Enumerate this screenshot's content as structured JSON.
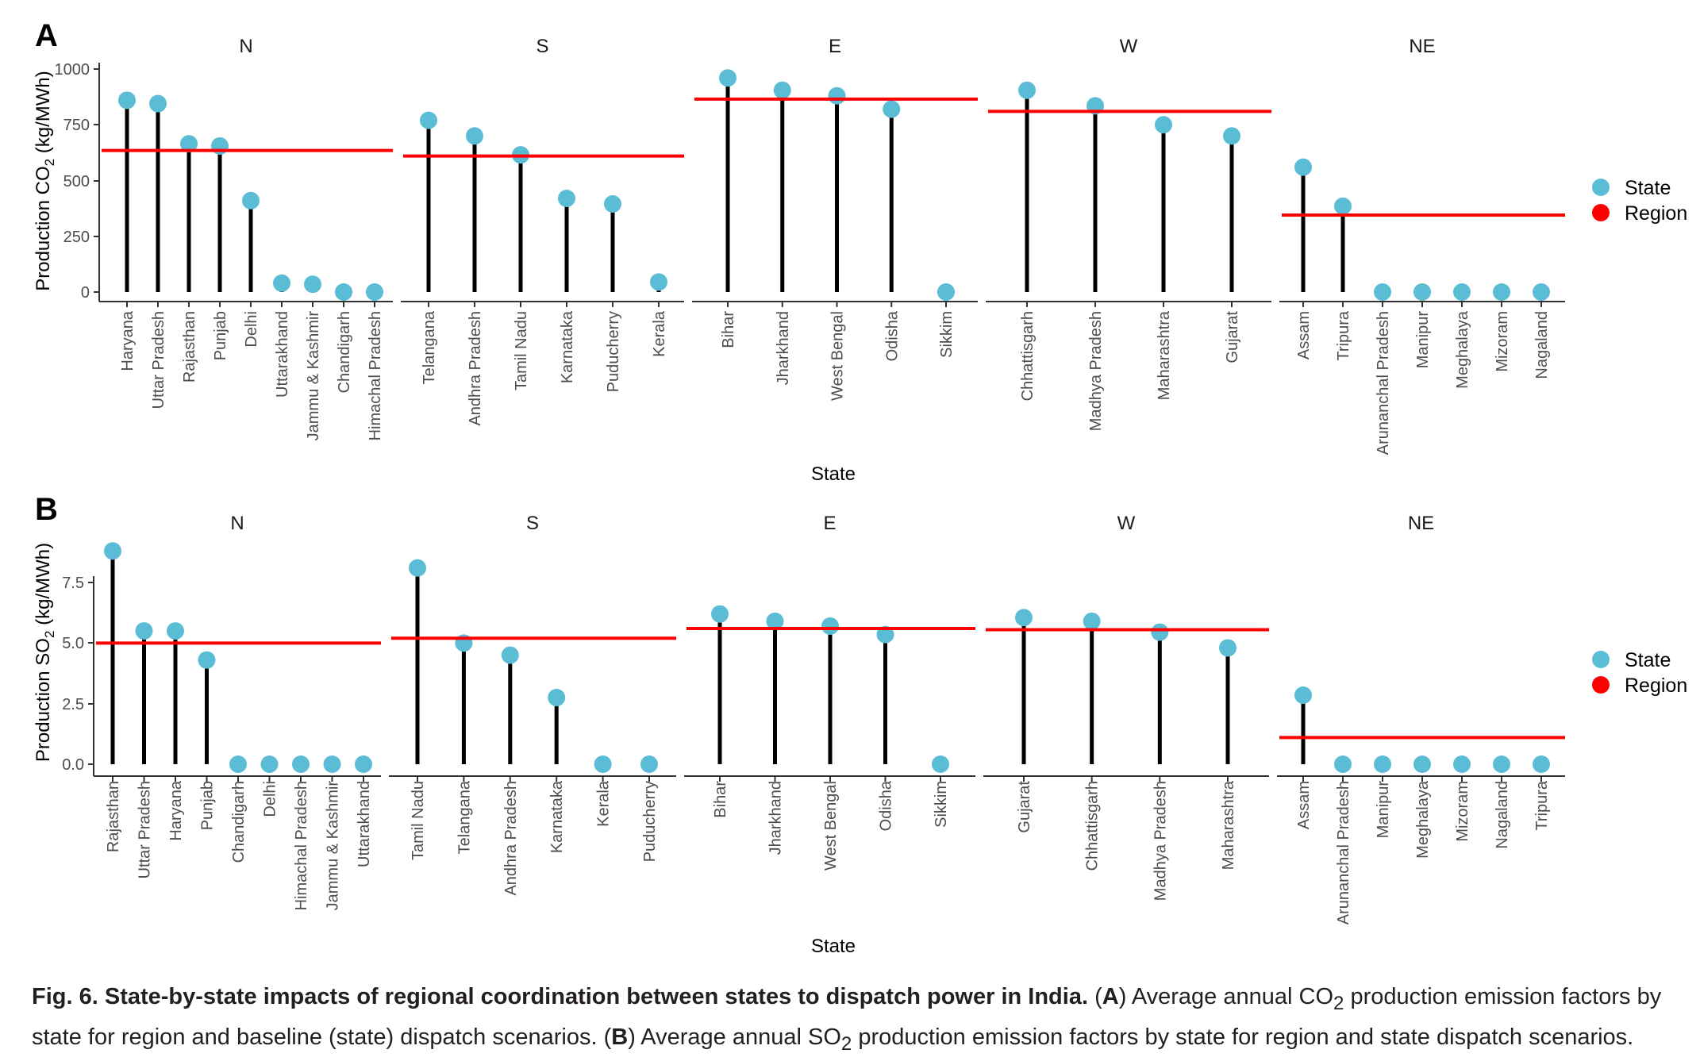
{
  "colors": {
    "state": "#5bbcd6",
    "region": "#ff0000",
    "stem": "#000000",
    "axis": "#333333"
  },
  "legend": {
    "state_label": "State",
    "region_label": "Region"
  },
  "caption": {
    "fig_label": "Fig. 6.",
    "title": "State-by-state impacts of regional coordination between states to dispatch power in India.",
    "a_open": "(",
    "a_letter": "A",
    "a_text_1": ") Average annual CO",
    "a_sub": "2",
    "a_text_2": " production emission factors by state for region and baseline (state) dispatch scenarios. (",
    "b_letter": "B",
    "b_text_1": ") Average annual SO",
    "b_sub": "2",
    "b_text_2": " production emission factors by state for region and state dispatch scenarios."
  },
  "chart_data": [
    {
      "type": "lollipop",
      "panel": "A",
      "ylabel_main": "Production CO",
      "ylabel_sub": "2",
      "ylabel_tail": " (kg/MWh)",
      "xlabel": "State",
      "ylim": [
        0,
        1000
      ],
      "yticks": [
        0,
        250,
        500,
        750,
        1000
      ],
      "ytick_labels": [
        "0",
        "250",
        "500",
        "750",
        "1000"
      ],
      "facets": [
        {
          "name": "N",
          "region": 635,
          "states": [
            [
              "Haryana",
              860
            ],
            [
              "Uttar Pradesh",
              845
            ],
            [
              "Rajasthan",
              665
            ],
            [
              "Punjab",
              655
            ],
            [
              "Delhi",
              410
            ],
            [
              "Uttarakhand",
              40
            ],
            [
              "Jammu & Kashmir",
              35
            ],
            [
              "Chandigarh",
              0
            ],
            [
              "Himachal Pradesh",
              0
            ]
          ]
        },
        {
          "name": "S",
          "region": 610,
          "states": [
            [
              "Telangana",
              770
            ],
            [
              "Andhra Pradesh",
              700
            ],
            [
              "Tamil Nadu",
              615
            ],
            [
              "Karnataka",
              420
            ],
            [
              "Puducherry",
              395
            ],
            [
              "Kerala",
              45
            ]
          ]
        },
        {
          "name": "E",
          "region": 865,
          "states": [
            [
              "Bihar",
              960
            ],
            [
              "Jharkhand",
              905
            ],
            [
              "West Bengal",
              880
            ],
            [
              "Odisha",
              820
            ],
            [
              "Sikkim",
              0
            ]
          ]
        },
        {
          "name": "W",
          "region": 810,
          "states": [
            [
              "Chhattisgarh",
              905
            ],
            [
              "Madhya Pradesh",
              835
            ],
            [
              "Maharashtra",
              750
            ],
            [
              "Gujarat",
              700
            ]
          ]
        },
        {
          "name": "NE",
          "region": 345,
          "states": [
            [
              "Assam",
              560
            ],
            [
              "Tripura",
              385
            ],
            [
              "Arunanchal Pradesh",
              0
            ],
            [
              "Manipur",
              0
            ],
            [
              "Meghalaya",
              0
            ],
            [
              "Mizoram",
              0
            ],
            [
              "Nagaland",
              0
            ]
          ]
        }
      ]
    },
    {
      "type": "lollipop",
      "panel": "B",
      "ylabel_main": "Production SO",
      "ylabel_sub": "2",
      "ylabel_tail": " (kg/MWh)",
      "xlabel": "State",
      "ylim": [
        0,
        9.2
      ],
      "yticks": [
        0,
        2.5,
        5,
        7.5
      ],
      "ytick_labels": [
        "0.0",
        "2.5",
        "5.0",
        "7.5"
      ],
      "facets": [
        {
          "name": "N",
          "region": 5.0,
          "states": [
            [
              "Rajasthan",
              8.8
            ],
            [
              "Uttar Pradesh",
              5.5
            ],
            [
              "Haryana",
              5.5
            ],
            [
              "Punjab",
              4.3
            ],
            [
              "Chandigarh",
              0
            ],
            [
              "Delhi",
              0
            ],
            [
              "Himachal Pradesh",
              0
            ],
            [
              "Jammu & Kashmir",
              0
            ],
            [
              "Uttarakhand",
              0
            ]
          ]
        },
        {
          "name": "S",
          "region": 5.2,
          "states": [
            [
              "Tamil Nadu",
              8.1
            ],
            [
              "Telangana",
              5.0
            ],
            [
              "Andhra Pradesh",
              4.5
            ],
            [
              "Karnataka",
              2.75
            ],
            [
              "Kerala",
              0
            ],
            [
              "Puducherry",
              0
            ]
          ]
        },
        {
          "name": "E",
          "region": 5.6,
          "states": [
            [
              "Bihar",
              6.2
            ],
            [
              "Jharkhand",
              5.9
            ],
            [
              "West Bengal",
              5.7
            ],
            [
              "Odisha",
              5.35
            ],
            [
              "Sikkim",
              0
            ]
          ]
        },
        {
          "name": "W",
          "region": 5.55,
          "states": [
            [
              "Gujarat",
              6.05
            ],
            [
              "Chhattisgarh",
              5.9
            ],
            [
              "Madhya Pradesh",
              5.45
            ],
            [
              "Maharashtra",
              4.8
            ]
          ]
        },
        {
          "name": "NE",
          "region": 1.1,
          "states": [
            [
              "Assam",
              2.85
            ],
            [
              "Arunanchal Pradesh",
              0
            ],
            [
              "Manipur",
              0
            ],
            [
              "Meghalaya",
              0
            ],
            [
              "Mizoram",
              0
            ],
            [
              "Nagaland",
              0
            ],
            [
              "Tripura",
              0
            ]
          ]
        }
      ]
    }
  ]
}
